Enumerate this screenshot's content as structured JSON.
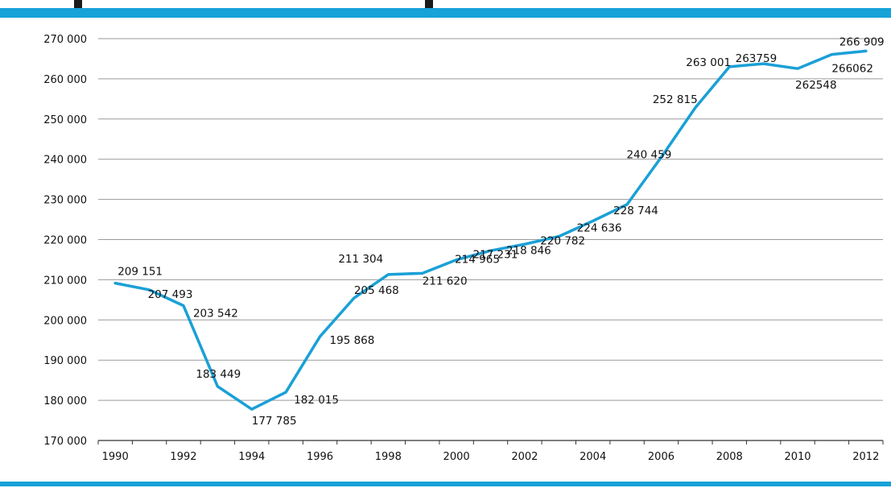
{
  "colors": {
    "band": "#17a2d8",
    "line": "#1aa0d6",
    "grid": "#9a9a9a"
  },
  "chart_data": {
    "type": "line",
    "x": [
      1990,
      1991,
      1992,
      1993,
      1994,
      1995,
      1996,
      1997,
      1998,
      1999,
      2000,
      2001,
      2002,
      2003,
      2004,
      2005,
      2006,
      2007,
      2008,
      2009,
      2010,
      2011,
      2012
    ],
    "series": [
      {
        "values": [
          209151,
          207493,
          203542,
          183449,
          177785,
          182015,
          195868,
          205468,
          211304,
          211620,
          214965,
          217231,
          218846,
          220782,
          224636,
          228744,
          240459,
          252815,
          263001,
          263759,
          262548,
          266062,
          266909
        ]
      }
    ],
    "point_labels": [
      "209 151",
      "207 493",
      "203 542",
      "183 449",
      "177 785",
      "182 015",
      "195 868",
      "205 468",
      "211 304",
      "211 620",
      "214 965",
      "217 231",
      "218 846",
      "220 782",
      "224 636",
      "228 744",
      "240 459",
      "252 815",
      "263 001",
      "263759",
      "262548",
      "266062",
      "266 909"
    ],
    "ylim": [
      170000,
      270000
    ],
    "yticks": [
      "170 000",
      "180 000",
      "190 000",
      "200 000",
      "210 000",
      "220 000",
      "230 000",
      "240 000",
      "250 000",
      "260 000",
      "270 000"
    ],
    "xticks": [
      "1990",
      "1992",
      "1994",
      "1996",
      "1998",
      "2000",
      "2002",
      "2004",
      "2006",
      "2008",
      "2010",
      "2012"
    ],
    "grid": true,
    "legend": "none"
  }
}
